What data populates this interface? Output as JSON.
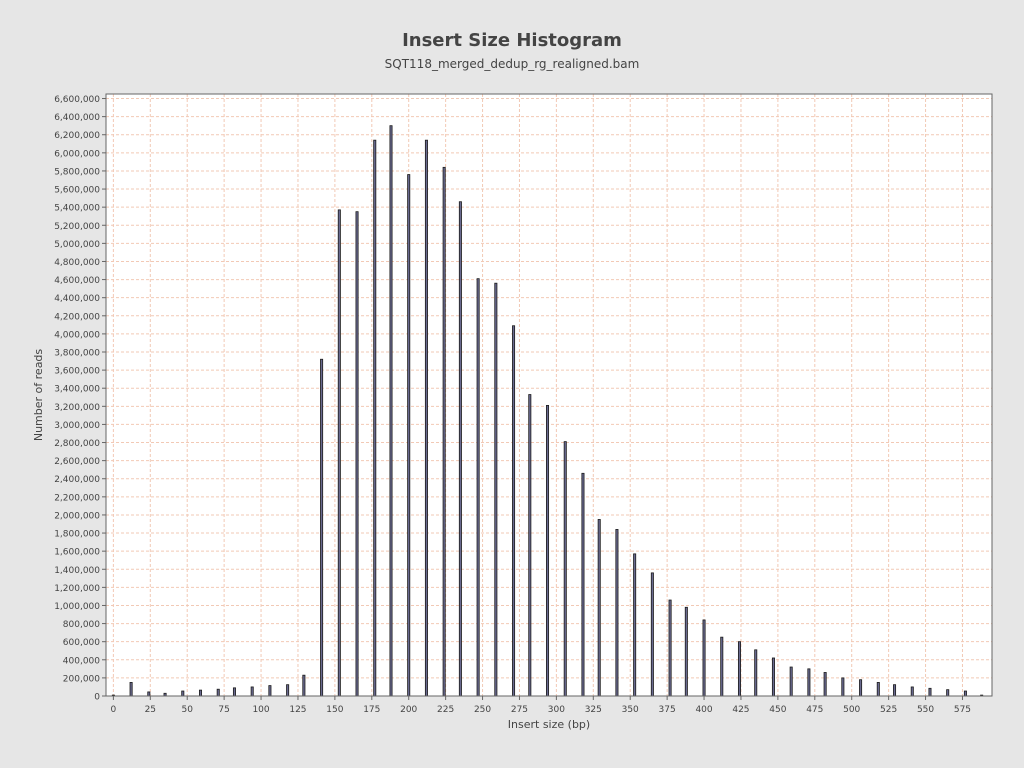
{
  "chart_data": {
    "type": "bar",
    "title": "Insert Size Histogram",
    "subtitle": "SQT118_merged_dedup_rg_realigned.bam",
    "xlabel": "Insert size (bp)",
    "ylabel": "Number of reads",
    "xlim": [
      -5,
      595
    ],
    "ylim": [
      0,
      6650000
    ],
    "grid": true,
    "legend": "none",
    "colors": {
      "page_background": "#e6e6e6",
      "plot_background": "#ffffff",
      "gridline": "#f2c9b5",
      "bar_fill": "#6a6a90",
      "bar_stroke": "#1a1a1a",
      "axis": "#666666",
      "text": "#444444"
    },
    "x_ticks": [
      {
        "value": 0,
        "label": "0"
      },
      {
        "value": 25,
        "label": "25"
      },
      {
        "value": 50,
        "label": "50"
      },
      {
        "value": 75,
        "label": "75"
      },
      {
        "value": 100,
        "label": "100"
      },
      {
        "value": 125,
        "label": "125"
      },
      {
        "value": 150,
        "label": "150"
      },
      {
        "value": 175,
        "label": "175"
      },
      {
        "value": 200,
        "label": "200"
      },
      {
        "value": 225,
        "label": "225"
      },
      {
        "value": 250,
        "label": "250"
      },
      {
        "value": 275,
        "label": "275"
      },
      {
        "value": 300,
        "label": "300"
      },
      {
        "value": 325,
        "label": "325"
      },
      {
        "value": 350,
        "label": "350"
      },
      {
        "value": 375,
        "label": "375"
      },
      {
        "value": 400,
        "label": "400"
      },
      {
        "value": 425,
        "label": "425"
      },
      {
        "value": 450,
        "label": "450"
      },
      {
        "value": 475,
        "label": "475"
      },
      {
        "value": 500,
        "label": "500"
      },
      {
        "value": 525,
        "label": "525"
      },
      {
        "value": 550,
        "label": "550"
      },
      {
        "value": 575,
        "label": "575"
      }
    ],
    "y_ticks": [
      {
        "value": 0,
        "label": "0"
      },
      {
        "value": 200000,
        "label": "200,000"
      },
      {
        "value": 400000,
        "label": "400,000"
      },
      {
        "value": 600000,
        "label": "600,000"
      },
      {
        "value": 800000,
        "label": "800,000"
      },
      {
        "value": 1000000,
        "label": "1,000,000"
      },
      {
        "value": 1200000,
        "label": "1,200,000"
      },
      {
        "value": 1400000,
        "label": "1,400,000"
      },
      {
        "value": 1600000,
        "label": "1,600,000"
      },
      {
        "value": 1800000,
        "label": "1,800,000"
      },
      {
        "value": 2000000,
        "label": "2,000,000"
      },
      {
        "value": 2200000,
        "label": "2,200,000"
      },
      {
        "value": 2400000,
        "label": "2,400,000"
      },
      {
        "value": 2600000,
        "label": "2,600,000"
      },
      {
        "value": 2800000,
        "label": "2,800,000"
      },
      {
        "value": 3000000,
        "label": "3,000,000"
      },
      {
        "value": 3200000,
        "label": "3,200,000"
      },
      {
        "value": 3400000,
        "label": "3,400,000"
      },
      {
        "value": 3600000,
        "label": "3,600,000"
      },
      {
        "value": 3800000,
        "label": "3,800,000"
      },
      {
        "value": 4000000,
        "label": "4,000,000"
      },
      {
        "value": 4200000,
        "label": "4,200,000"
      },
      {
        "value": 4400000,
        "label": "4,400,000"
      },
      {
        "value": 4600000,
        "label": "4,600,000"
      },
      {
        "value": 4800000,
        "label": "4,800,000"
      },
      {
        "value": 5000000,
        "label": "5,000,000"
      },
      {
        "value": 5200000,
        "label": "5,200,000"
      },
      {
        "value": 5400000,
        "label": "5,400,000"
      },
      {
        "value": 5600000,
        "label": "5,600,000"
      },
      {
        "value": 5800000,
        "label": "5,800,000"
      },
      {
        "value": 6000000,
        "label": "6,000,000"
      },
      {
        "value": 6200000,
        "label": "6,200,000"
      },
      {
        "value": 6400000,
        "label": "6,400,000"
      },
      {
        "value": 6600000,
        "label": "6,600,000"
      }
    ],
    "x": [
      0,
      12,
      24,
      35,
      47,
      59,
      71,
      82,
      94,
      106,
      118,
      129,
      141,
      153,
      165,
      177,
      188,
      200,
      212,
      224,
      235,
      247,
      259,
      271,
      282,
      294,
      306,
      318,
      329,
      341,
      353,
      365,
      377,
      388,
      400,
      412,
      424,
      435,
      447,
      459,
      471,
      482,
      494,
      506,
      518,
      529,
      541,
      553,
      565,
      577,
      588
    ],
    "values": [
      10000,
      150000,
      45000,
      30000,
      55000,
      65000,
      75000,
      90000,
      100000,
      115000,
      125000,
      230000,
      3720000,
      5370000,
      5350000,
      6140000,
      6300000,
      5760000,
      6140000,
      5840000,
      5460000,
      4610000,
      4560000,
      4090000,
      3330000,
      3210000,
      2810000,
      2460000,
      1950000,
      1840000,
      1570000,
      1360000,
      1060000,
      980000,
      840000,
      650000,
      600000,
      510000,
      420000,
      320000,
      300000,
      260000,
      200000,
      180000,
      150000,
      125000,
      100000,
      85000,
      70000,
      55000,
      10000
    ]
  }
}
